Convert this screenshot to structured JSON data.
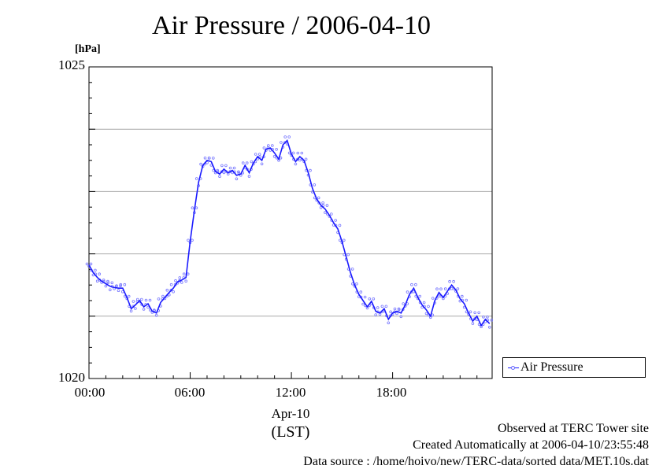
{
  "chart_data": {
    "type": "line",
    "title": "Air Pressure / 2006-04-10",
    "ylabel": "[hPa]",
    "ylim": [
      1020,
      1025
    ],
    "y_gridlines": [
      1021,
      1022,
      1023,
      1024
    ],
    "y_tick_labels": [
      {
        "value": 1025,
        "label": "1025"
      },
      {
        "value": 1020,
        "label": "1020"
      }
    ],
    "xlim": [
      0,
      23.9
    ],
    "x_tick_labels": [
      {
        "value": 0,
        "label": "00:00"
      },
      {
        "value": 6,
        "label": "06:00"
      },
      {
        "value": 12,
        "label": "12:00"
      },
      {
        "value": 18,
        "label": "18:00"
      }
    ],
    "x_date_label": "Apr-10",
    "x_unit_label": "(LST)",
    "legend": "bottom-right",
    "series": [
      {
        "name": "Air Pressure",
        "color": "#1a1aff",
        "x_hours": [
          0.0,
          0.25,
          0.5,
          0.75,
          1.0,
          1.25,
          1.5,
          1.75,
          2.0,
          2.25,
          2.5,
          2.75,
          3.0,
          3.25,
          3.5,
          3.75,
          4.0,
          4.25,
          4.5,
          4.75,
          5.0,
          5.25,
          5.5,
          5.75,
          6.0,
          6.25,
          6.5,
          6.75,
          7.0,
          7.25,
          7.5,
          7.75,
          8.0,
          8.25,
          8.5,
          8.75,
          9.0,
          9.25,
          9.5,
          9.75,
          10.0,
          10.25,
          10.5,
          10.75,
          11.0,
          11.25,
          11.5,
          11.75,
          12.0,
          12.25,
          12.5,
          12.75,
          13.0,
          13.25,
          13.5,
          13.75,
          14.0,
          14.25,
          14.5,
          14.75,
          15.0,
          15.25,
          15.5,
          15.75,
          16.0,
          16.25,
          16.5,
          16.75,
          17.0,
          17.25,
          17.5,
          17.75,
          18.0,
          18.25,
          18.5,
          18.75,
          19.0,
          19.25,
          19.5,
          19.75,
          20.0,
          20.25,
          20.5,
          20.75,
          21.0,
          21.25,
          21.5,
          21.75,
          22.0,
          22.25,
          22.5,
          22.75,
          23.0,
          23.25,
          23.5,
          23.75
        ],
        "values": [
          1021.82,
          1021.7,
          1021.62,
          1021.56,
          1021.52,
          1021.48,
          1021.46,
          1021.45,
          1021.45,
          1021.3,
          1021.12,
          1021.18,
          1021.25,
          1021.15,
          1021.2,
          1021.08,
          1021.05,
          1021.22,
          1021.3,
          1021.38,
          1021.45,
          1021.55,
          1021.58,
          1021.62,
          1022.2,
          1022.7,
          1023.15,
          1023.42,
          1023.5,
          1023.48,
          1023.32,
          1023.28,
          1023.36,
          1023.3,
          1023.34,
          1023.26,
          1023.28,
          1023.42,
          1023.3,
          1023.46,
          1023.56,
          1023.5,
          1023.68,
          1023.7,
          1023.62,
          1023.52,
          1023.75,
          1023.82,
          1023.6,
          1023.48,
          1023.56,
          1023.5,
          1023.3,
          1023.05,
          1022.88,
          1022.78,
          1022.72,
          1022.62,
          1022.5,
          1022.4,
          1022.2,
          1021.95,
          1021.7,
          1021.5,
          1021.35,
          1021.25,
          1021.15,
          1021.24,
          1021.08,
          1021.05,
          1021.12,
          1020.95,
          1021.05,
          1021.08,
          1021.05,
          1021.18,
          1021.35,
          1021.45,
          1021.3,
          1021.18,
          1021.1,
          1021.0,
          1021.25,
          1021.38,
          1021.3,
          1021.4,
          1021.5,
          1021.42,
          1021.28,
          1021.2,
          1021.05,
          1020.92,
          1021.0,
          1020.85,
          1020.95,
          1020.88
        ]
      }
    ]
  },
  "footer": {
    "line1": "Observed at TERC Tower site",
    "line2": "Created Automatically at 2006-04-10/23:55:48",
    "line3": "Data source : /home/hoivo/new/TERC-data/sorted  data/MET.10s.dat"
  }
}
